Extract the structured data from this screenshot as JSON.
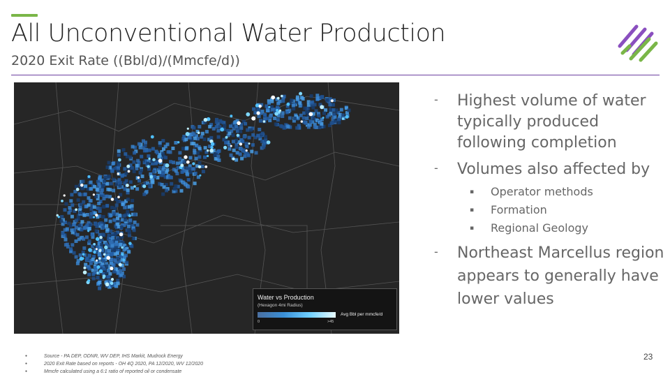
{
  "slide": {
    "title": "All Unconventional Water Production",
    "subtitle": "2020 Exit Rate ((Bbl/d)/(Mmcfe/d))",
    "page_number": "23"
  },
  "colors": {
    "accent_green": "#7ab648",
    "accent_purple": "#6b3fa0",
    "map_background": "#262626",
    "hexagon_blue": "#2f6db4",
    "hexagon_bright": "#e8fbff"
  },
  "map": {
    "legend": {
      "title": "Water vs Production",
      "subtitle": "(Hexagon 4mi Radius)",
      "min_label": "0",
      "max_label": ">45",
      "unit_label": "Avg Bbl per mmcfe/d"
    }
  },
  "bullets": [
    {
      "level": 1,
      "text": "Highest volume of water typically produced following completion"
    },
    {
      "level": 1,
      "text": "Volumes also affected by"
    },
    {
      "level": 2,
      "text": "Operator methods"
    },
    {
      "level": 2,
      "text": "Formation"
    },
    {
      "level": 2,
      "text": "Regional Geology"
    },
    {
      "level": 1,
      "text": "Northeast Marcellus region appears to generally have lower values"
    }
  ],
  "bullet_markers": {
    "level1": "-",
    "level2": "▪"
  },
  "sources": [
    "Source - PA DEP, ODNR, WV DEP, IHS Markit, Mudrock Energy",
    "2020 Exit Rate based on reports - OH 4Q 2020, PA 12/2020, WV 12/2020",
    "Mmcfe calculated using a 6:1 ratio of reported oil or condensate"
  ]
}
